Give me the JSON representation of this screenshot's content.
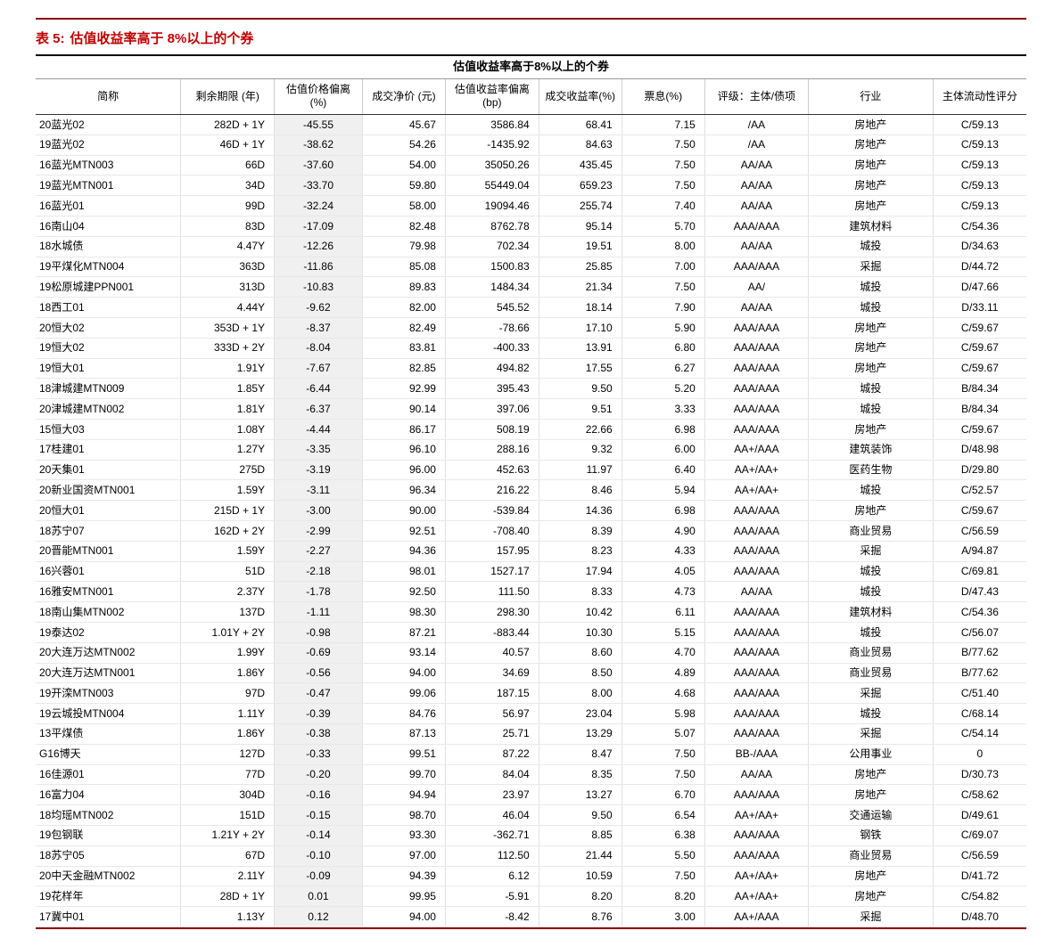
{
  "title_prefix": "表 5:",
  "title_text": "估值收益率高于 8%以上的个券",
  "merged_header": "估值收益率高于8%以上的个券",
  "columns": [
    "简称",
    "剩余期限 (年)",
    "估值价格偏离 (%)",
    "成交净价 (元)",
    "估值收益率偏离(bp)",
    "成交收益率(%)",
    "票息(%)",
    "评级：主体/债项",
    "行业",
    "主体流动性评分"
  ],
  "rows": [
    [
      "20蓝光02",
      "282D + 1Y",
      "-45.55",
      "45.67",
      "3586.84",
      "68.41",
      "7.15",
      "/AA",
      "房地产",
      "C/59.13"
    ],
    [
      "19蓝光02",
      "46D + 1Y",
      "-38.62",
      "54.26",
      "-1435.92",
      "84.63",
      "7.50",
      "/AA",
      "房地产",
      "C/59.13"
    ],
    [
      "16蓝光MTN003",
      "66D",
      "-37.60",
      "54.00",
      "35050.26",
      "435.45",
      "7.50",
      "AA/AA",
      "房地产",
      "C/59.13"
    ],
    [
      "19蓝光MTN001",
      "34D",
      "-33.70",
      "59.80",
      "55449.04",
      "659.23",
      "7.50",
      "AA/AA",
      "房地产",
      "C/59.13"
    ],
    [
      "16蓝光01",
      "99D",
      "-32.24",
      "58.00",
      "19094.46",
      "255.74",
      "7.40",
      "AA/AA",
      "房地产",
      "C/59.13"
    ],
    [
      "16南山04",
      "83D",
      "-17.09",
      "82.48",
      "8762.78",
      "95.14",
      "5.70",
      "AAA/AAA",
      "建筑材料",
      "C/54.36"
    ],
    [
      "18水城债",
      "4.47Y",
      "-12.26",
      "79.98",
      "702.34",
      "19.51",
      "8.00",
      "AA/AA",
      "城投",
      "D/34.63"
    ],
    [
      "19平煤化MTN004",
      "363D",
      "-11.86",
      "85.08",
      "1500.83",
      "25.85",
      "7.00",
      "AAA/AAA",
      "采掘",
      "D/44.72"
    ],
    [
      "19松原城建PPN001",
      "313D",
      "-10.83",
      "89.83",
      "1484.34",
      "21.34",
      "7.50",
      "AA/",
      "城投",
      "D/47.66"
    ],
    [
      "18西工01",
      "4.44Y",
      "-9.62",
      "82.00",
      "545.52",
      "18.14",
      "7.90",
      "AA/AA",
      "城投",
      "D/33.11"
    ],
    [
      "20恒大02",
      "353D + 1Y",
      "-8.37",
      "82.49",
      "-78.66",
      "17.10",
      "5.90",
      "AAA/AAA",
      "房地产",
      "C/59.67"
    ],
    [
      "19恒大02",
      "333D + 2Y",
      "-8.04",
      "83.81",
      "-400.33",
      "13.91",
      "6.80",
      "AAA/AAA",
      "房地产",
      "C/59.67"
    ],
    [
      "19恒大01",
      "1.91Y",
      "-7.67",
      "82.85",
      "494.82",
      "17.55",
      "6.27",
      "AAA/AAA",
      "房地产",
      "C/59.67"
    ],
    [
      "18津城建MTN009",
      "1.85Y",
      "-6.44",
      "92.99",
      "395.43",
      "9.50",
      "5.20",
      "AAA/AAA",
      "城投",
      "B/84.34"
    ],
    [
      "20津城建MTN002",
      "1.81Y",
      "-6.37",
      "90.14",
      "397.06",
      "9.51",
      "3.33",
      "AAA/AAA",
      "城投",
      "B/84.34"
    ],
    [
      "15恒大03",
      "1.08Y",
      "-4.44",
      "86.17",
      "508.19",
      "22.66",
      "6.98",
      "AAA/AAA",
      "房地产",
      "C/59.67"
    ],
    [
      "17桂建01",
      "1.27Y",
      "-3.35",
      "96.10",
      "288.16",
      "9.32",
      "6.00",
      "AA+/AAA",
      "建筑装饰",
      "D/48.98"
    ],
    [
      "20天集01",
      "275D",
      "-3.19",
      "96.00",
      "452.63",
      "11.97",
      "6.40",
      "AA+/AA+",
      "医药生物",
      "D/29.80"
    ],
    [
      "20新业国资MTN001",
      "1.59Y",
      "-3.11",
      "96.34",
      "216.22",
      "8.46",
      "5.94",
      "AA+/AA+",
      "城投",
      "C/52.57"
    ],
    [
      "20恒大01",
      "215D + 1Y",
      "-3.00",
      "90.00",
      "-539.84",
      "14.36",
      "6.98",
      "AAA/AAA",
      "房地产",
      "C/59.67"
    ],
    [
      "18苏宁07",
      "162D + 2Y",
      "-2.99",
      "92.51",
      "-708.40",
      "8.39",
      "4.90",
      "AAA/AAA",
      "商业贸易",
      "C/56.59"
    ],
    [
      "20晋能MTN001",
      "1.59Y",
      "-2.27",
      "94.36",
      "157.95",
      "8.23",
      "4.33",
      "AAA/AAA",
      "采掘",
      "A/94.87"
    ],
    [
      "16兴蓉01",
      "51D",
      "-2.18",
      "98.01",
      "1527.17",
      "17.94",
      "4.05",
      "AAA/AAA",
      "城投",
      "C/69.81"
    ],
    [
      "16雅安MTN001",
      "2.37Y",
      "-1.78",
      "92.50",
      "111.50",
      "8.33",
      "4.73",
      "AA/AA",
      "城投",
      "D/47.43"
    ],
    [
      "18南山集MTN002",
      "137D",
      "-1.11",
      "98.30",
      "298.30",
      "10.42",
      "6.11",
      "AAA/AAA",
      "建筑材料",
      "C/54.36"
    ],
    [
      "19泰达02",
      "1.01Y + 2Y",
      "-0.98",
      "87.21",
      "-883.44",
      "10.30",
      "5.15",
      "AAA/AAA",
      "城投",
      "C/56.07"
    ],
    [
      "20大连万达MTN002",
      "1.99Y",
      "-0.69",
      "93.14",
      "40.57",
      "8.60",
      "4.70",
      "AAA/AAA",
      "商业贸易",
      "B/77.62"
    ],
    [
      "20大连万达MTN001",
      "1.86Y",
      "-0.56",
      "94.00",
      "34.69",
      "8.50",
      "4.89",
      "AAA/AAA",
      "商业贸易",
      "B/77.62"
    ],
    [
      "19开滦MTN003",
      "97D",
      "-0.47",
      "99.06",
      "187.15",
      "8.00",
      "4.68",
      "AAA/AAA",
      "采掘",
      "C/51.40"
    ],
    [
      "19云城投MTN004",
      "1.11Y",
      "-0.39",
      "84.76",
      "56.97",
      "23.04",
      "5.98",
      "AAA/AAA",
      "城投",
      "C/68.14"
    ],
    [
      "13平煤债",
      "1.86Y",
      "-0.38",
      "87.13",
      "25.71",
      "13.29",
      "5.07",
      "AAA/AAA",
      "采掘",
      "C/54.14"
    ],
    [
      "G16博天",
      "127D",
      "-0.33",
      "99.51",
      "87.22",
      "8.47",
      "7.50",
      "BB-/AAA",
      "公用事业",
      "0"
    ],
    [
      "16佳源01",
      "77D",
      "-0.20",
      "99.70",
      "84.04",
      "8.35",
      "7.50",
      "AA/AA",
      "房地产",
      "D/30.73"
    ],
    [
      "16富力04",
      "304D",
      "-0.16",
      "94.94",
      "23.97",
      "13.27",
      "6.70",
      "AAA/AAA",
      "房地产",
      "C/58.62"
    ],
    [
      "18均瑶MTN002",
      "151D",
      "-0.15",
      "98.70",
      "46.04",
      "9.50",
      "6.54",
      "AA+/AA+",
      "交通运输",
      "D/49.61"
    ],
    [
      "19包钢联",
      "1.21Y + 2Y",
      "-0.14",
      "93.30",
      "-362.71",
      "8.85",
      "6.38",
      "AAA/AAA",
      "钢铁",
      "C/69.07"
    ],
    [
      "18苏宁05",
      "67D",
      "-0.10",
      "97.00",
      "112.50",
      "21.44",
      "5.50",
      "AAA/AAA",
      "商业贸易",
      "C/56.59"
    ],
    [
      "20中天金融MTN002",
      "2.11Y",
      "-0.09",
      "94.39",
      "6.12",
      "10.59",
      "7.50",
      "AA+/AA+",
      "房地产",
      "D/41.72"
    ],
    [
      "19花样年",
      "28D + 1Y",
      "0.01",
      "99.95",
      "-5.91",
      "8.20",
      "8.20",
      "AA+/AA+",
      "房地产",
      "C/54.82"
    ],
    [
      "17冀中01",
      "1.13Y",
      "0.12",
      "94.00",
      "-8.42",
      "8.76",
      "3.00",
      "AA+/AAA",
      "采掘",
      "D/48.70"
    ]
  ],
  "colors": {
    "title_color": "#c00000",
    "top_line": "#8b0000",
    "bottom_line": "#8b0000",
    "header_border": "#333333",
    "row_border": "#e8e8e8",
    "highlight_col_bg": "#f0f0f0",
    "background": "#ffffff"
  },
  "column_widths_pct": [
    14,
    9,
    8.5,
    8,
    9,
    8,
    8,
    10,
    12,
    9
  ],
  "font_sizes": {
    "title": 15,
    "header": 12,
    "body": 12,
    "merged_header": 13
  }
}
